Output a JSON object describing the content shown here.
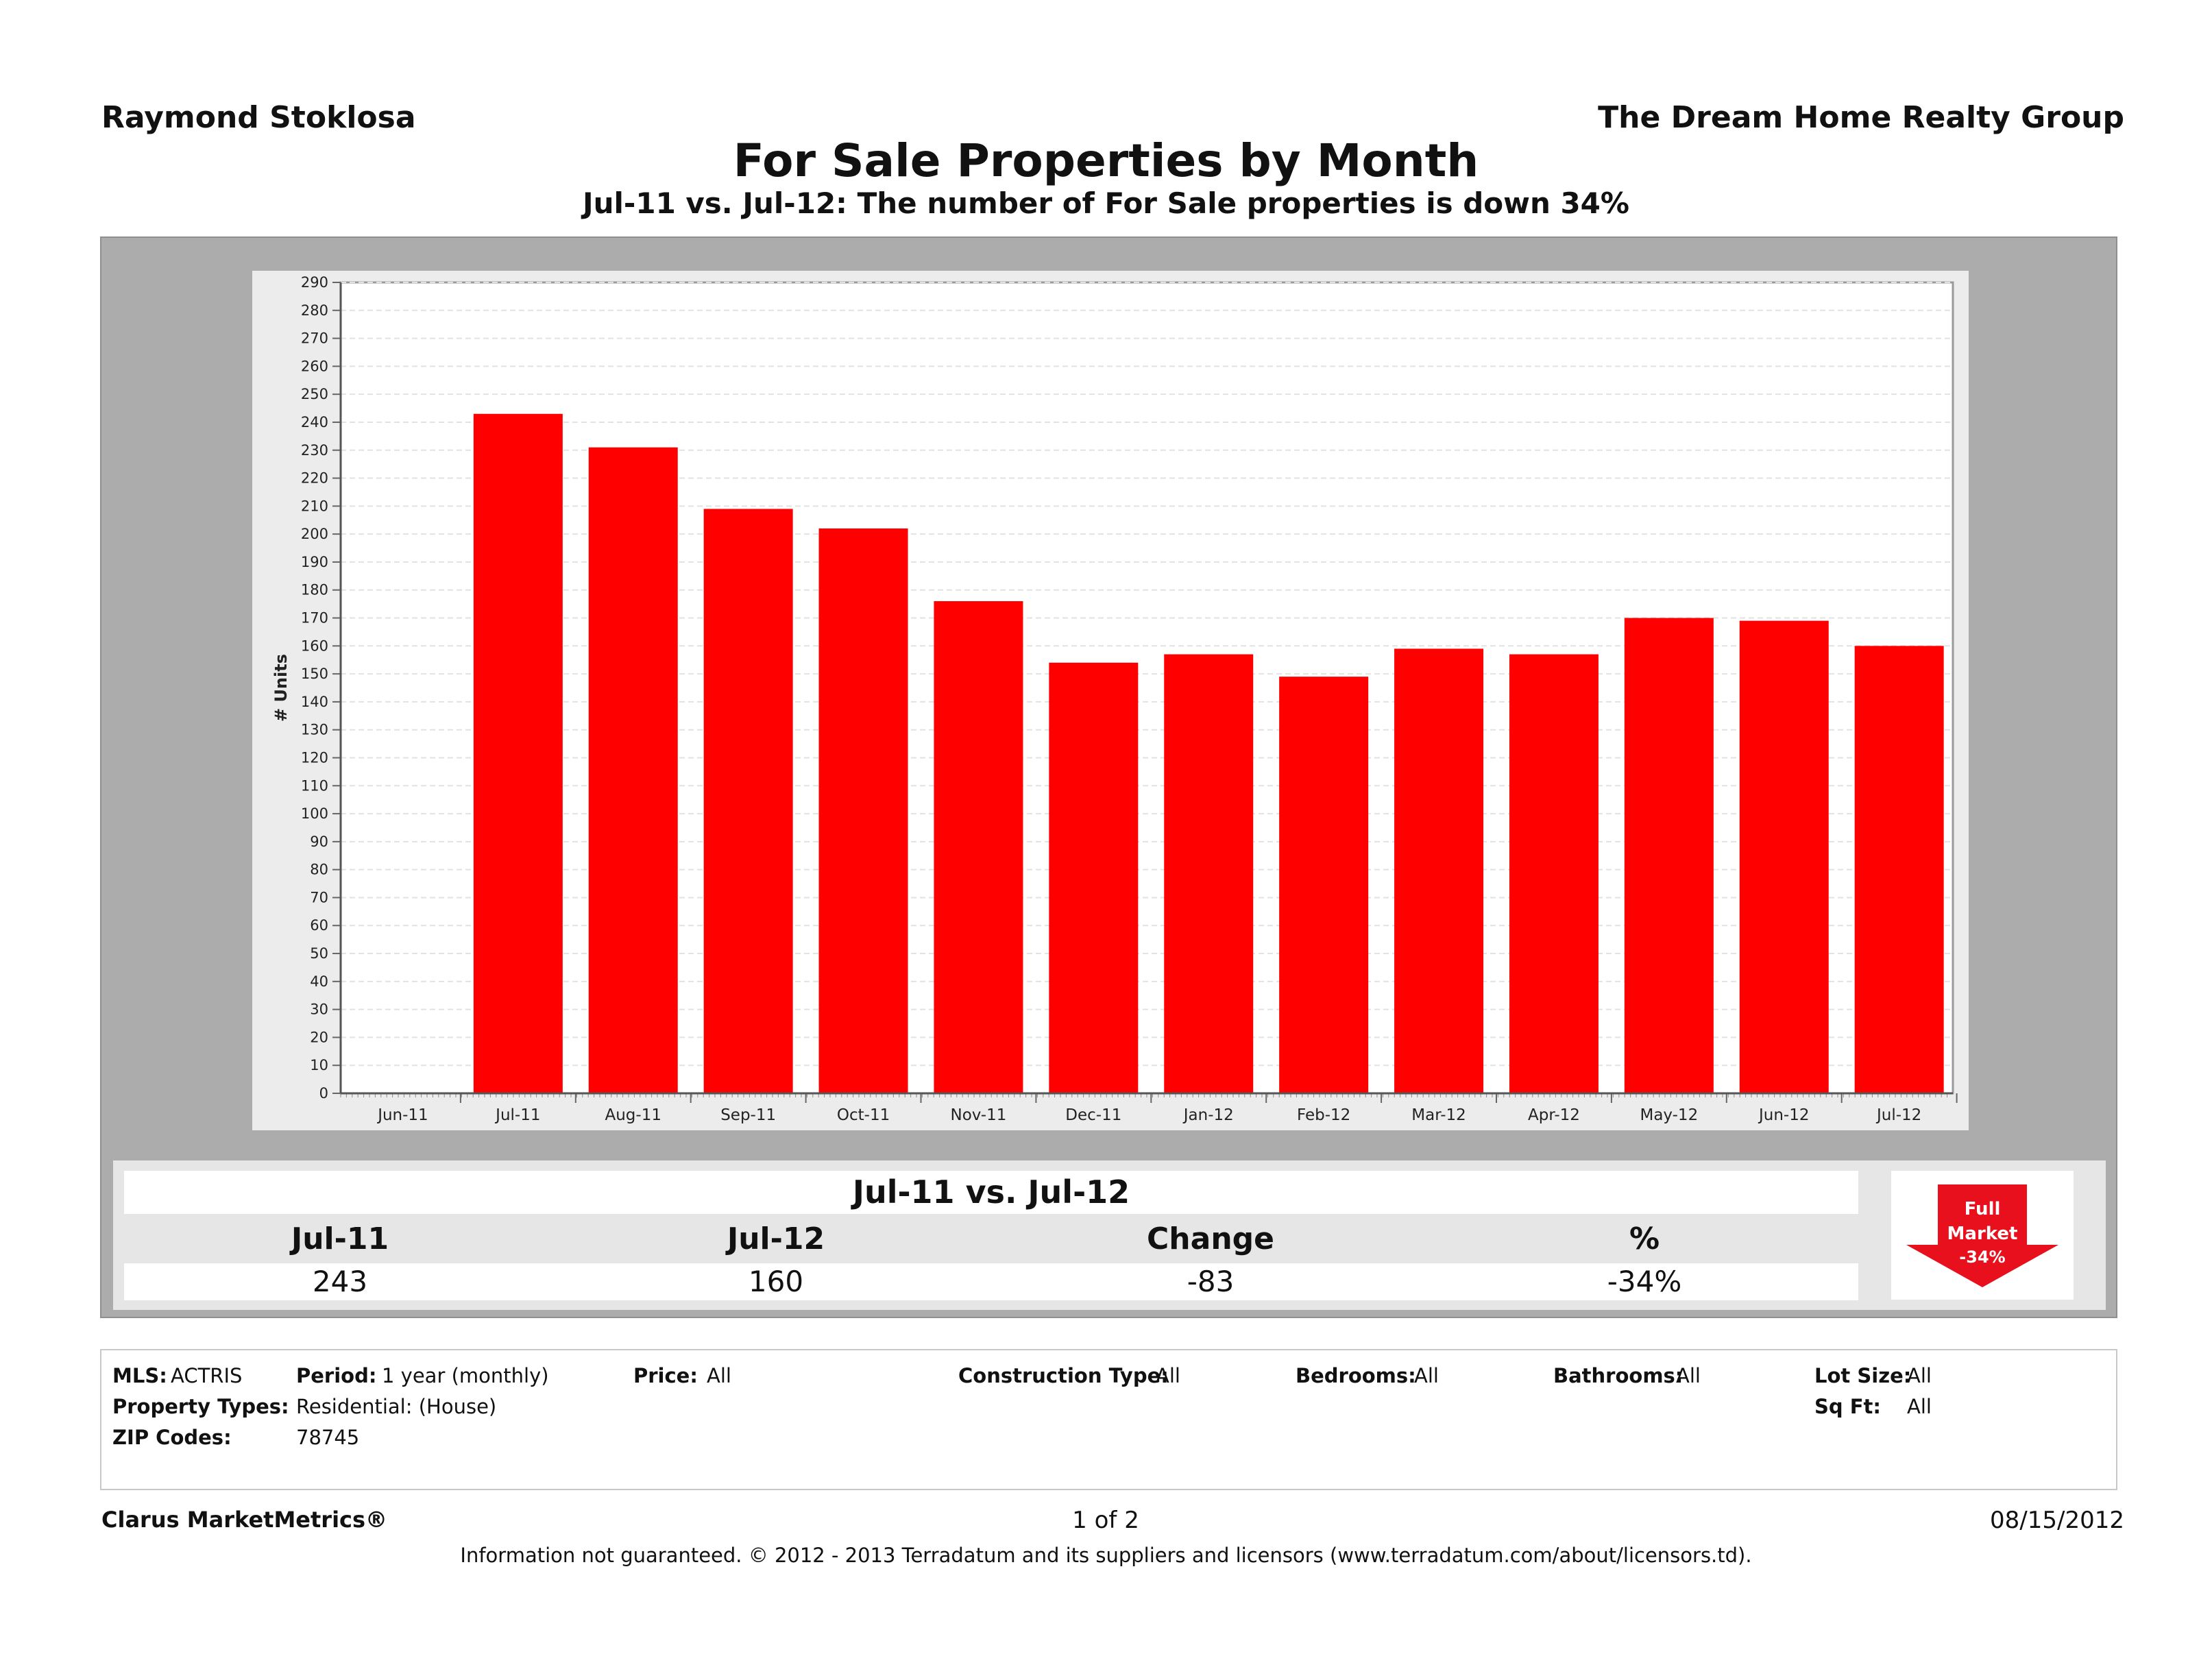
{
  "header": {
    "agent_name": "Raymond Stoklosa",
    "company": "The Dream Home Realty Group",
    "title": "For Sale Properties by Month",
    "subtitle": "Jul-11 vs. Jul-12: The number of For Sale properties is down 34%"
  },
  "chart_data": {
    "type": "bar",
    "categories": [
      "Jun-11",
      "Jul-11",
      "Aug-11",
      "Sep-11",
      "Oct-11",
      "Nov-11",
      "Dec-11",
      "Jan-12",
      "Feb-12",
      "Mar-12",
      "Apr-12",
      "May-12",
      "Jun-12",
      "Jul-12"
    ],
    "values": [
      null,
      243,
      231,
      209,
      202,
      176,
      154,
      157,
      149,
      159,
      157,
      170,
      169,
      160
    ],
    "ylabel": "# Units",
    "xlabel": "",
    "ylim": [
      0,
      290
    ],
    "ytick_step": 10,
    "bar_color": "#ff0000",
    "grid": true
  },
  "stats": {
    "title": "Jul-11 vs. Jul-12",
    "columns": [
      {
        "label": "Jul-11",
        "value": "243"
      },
      {
        "label": "Jul-12",
        "value": "160"
      },
      {
        "label": "Change",
        "value": "-83"
      },
      {
        "label": "%",
        "value": "-34%"
      }
    ],
    "badge": {
      "line1": "Full",
      "line2": "Market",
      "line3": "-34%",
      "color": "#e8101c",
      "icon": "down-arrow-icon"
    }
  },
  "filters": {
    "mls_label": "MLS:",
    "mls_value": "ACTRIS",
    "period_label": "Period:",
    "period_value": "1 year (monthly)",
    "price_label": "Price:",
    "price_value": "All",
    "construction_label": "Construction Type:",
    "construction_value": "All",
    "bedrooms_label": "Bedrooms:",
    "bedrooms_value": "All",
    "bathrooms_label": "Bathrooms:",
    "bathrooms_value": "All",
    "lot_size_label": "Lot Size:",
    "lot_size_value": "All",
    "property_types_label": "Property Types:",
    "property_types_value": "Residential: (House)",
    "sqft_label": "Sq Ft:",
    "sqft_value": "All",
    "zip_label": "ZIP Codes:",
    "zip_value": "78745"
  },
  "footer": {
    "brand": "Clarus MarketMetrics®",
    "page": "1 of 2",
    "date": "08/15/2012",
    "disclaimer": "Information not guaranteed.  © 2012 - 2013 Terradatum and its suppliers and licensors (www.terradatum.com/about/licensors.td)."
  }
}
